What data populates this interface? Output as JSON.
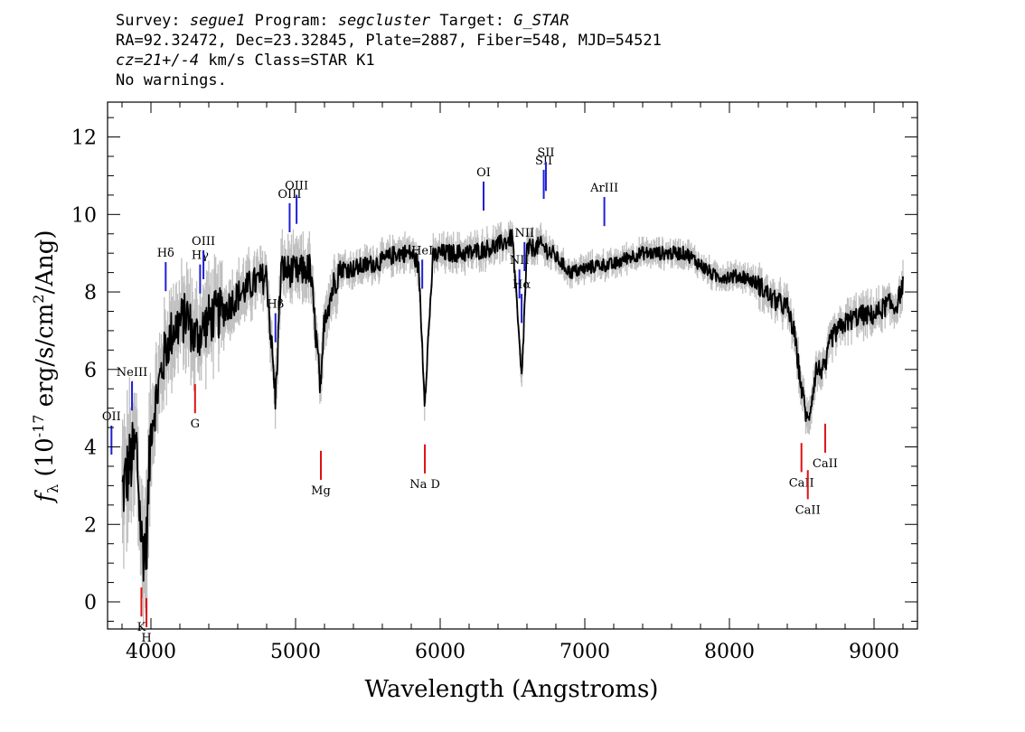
{
  "header": {
    "line1": {
      "survey_label": "Survey:",
      "survey": "segue1",
      "program_label": "Program:",
      "program": "segcluster",
      "target_label": "Target:",
      "target": "G_STAR"
    },
    "line2": "RA=92.32472, Dec=23.32845, Plate=2887, Fiber=548, MJD=54521",
    "line3": {
      "cz": "cz=21+/-4",
      "rest": "km/s Class=STAR K1"
    },
    "line4": "No warnings."
  },
  "chart_data": {
    "type": "line",
    "xlabel": "Wavelength (Angstroms)",
    "ylabel": "f_λ (10^-17 erg/s/cm^2/Ang)",
    "xlim": [
      3700,
      9300
    ],
    "ylim": [
      -0.7,
      12.9
    ],
    "x_ticks": [
      4000,
      5000,
      6000,
      7000,
      8000,
      9000
    ],
    "y_ticks": [
      0,
      2,
      4,
      6,
      8,
      10,
      12
    ],
    "series": [
      {
        "color": "#000000",
        "x": [
          3800,
          3850,
          3900,
          3935,
          3968,
          4000,
          4050,
          4100,
          4150,
          4200,
          4250,
          4300,
          4350,
          4400,
          4450,
          4500,
          4600,
          4700,
          4800,
          4861,
          4900,
          5000,
          5100,
          5150,
          5175,
          5200,
          5300,
          5400,
          5500,
          5600,
          5700,
          5800,
          5850,
          5893,
          5950,
          6000,
          6100,
          6200,
          6300,
          6400,
          6500,
          6563,
          6600,
          6700,
          6800,
          6900,
          7000,
          7100,
          7200,
          7300,
          7400,
          7500,
          7600,
          7700,
          7800,
          7900,
          8000,
          8100,
          8200,
          8300,
          8400,
          8450,
          8498,
          8542,
          8600,
          8662,
          8700,
          8800,
          8900,
          9000,
          9100,
          9150,
          9200
        ],
        "y": [
          2.8,
          3.5,
          4.0,
          1.5,
          1.4,
          4.5,
          5.5,
          6.5,
          7.0,
          7.2,
          7.4,
          6.8,
          7.0,
          7.3,
          7.4,
          7.5,
          7.9,
          8.2,
          8.4,
          5.2,
          8.6,
          8.5,
          8.6,
          6.5,
          5.3,
          7.4,
          8.6,
          8.6,
          8.7,
          8.8,
          9.0,
          9.0,
          8.7,
          5.2,
          8.9,
          9.0,
          9.0,
          9.0,
          9.1,
          9.2,
          9.4,
          5.7,
          9.1,
          9.2,
          8.9,
          8.5,
          8.6,
          8.7,
          8.7,
          8.9,
          9.0,
          9.0,
          9.0,
          9.0,
          8.7,
          8.4,
          8.4,
          8.4,
          8.2,
          7.8,
          7.6,
          6.9,
          5.5,
          4.6,
          6.0,
          6.0,
          6.8,
          7.2,
          7.4,
          7.4,
          7.7,
          7.6,
          8.2
        ]
      }
    ],
    "lines_blue": [
      {
        "label": "OII",
        "x": 3727
      },
      {
        "label": "NeIII",
        "x": 3869
      },
      {
        "label": "Hδ",
        "x": 4102
      },
      {
        "label": "Hγ",
        "x": 4340
      },
      {
        "label": "OIII",
        "x": 4363
      },
      {
        "label": "Hβ",
        "x": 4861
      },
      {
        "label": "OIII",
        "x": 4959
      },
      {
        "label": "OIII",
        "x": 5007
      },
      {
        "label": "HeI",
        "x": 5876
      },
      {
        "label": "OI",
        "x": 6300
      },
      {
        "label": "NII",
        "x": 6548
      },
      {
        "label": "Hα",
        "x": 6563
      },
      {
        "label": "NII",
        "x": 6583
      },
      {
        "label": "SII",
        "x": 6716
      },
      {
        "label": "SII",
        "x": 6731
      },
      {
        "label": "ArIII",
        "x": 7135
      }
    ],
    "lines_red": [
      {
        "label": "K",
        "x": 3934
      },
      {
        "label": "H",
        "x": 3969
      },
      {
        "label": "G",
        "x": 4305
      },
      {
        "label": "Mg",
        "x": 5175
      },
      {
        "label": "Na D",
        "x": 5894
      },
      {
        "label": "CaII",
        "x": 8498
      },
      {
        "label": "CaII",
        "x": 8542
      },
      {
        "label": "CaII",
        "x": 8662
      }
    ],
    "colors": {
      "spectrum": "#000000",
      "error": "#bfbfbf",
      "emission": "#1f1fd6",
      "absorption": "#e01010"
    }
  }
}
